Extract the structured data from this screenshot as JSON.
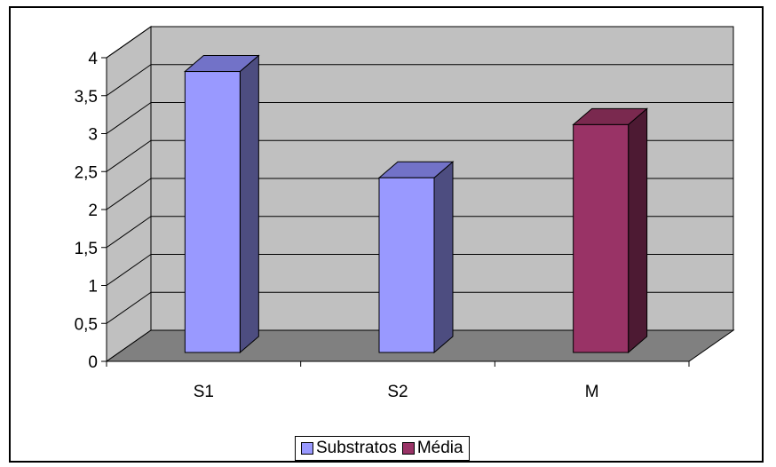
{
  "chart_data": {
    "type": "bar",
    "categories": [
      "S1",
      "S2",
      "M"
    ],
    "series": [
      {
        "name": "Substratos",
        "values": [
          3.9,
          2.5,
          null
        ],
        "color": "#9999ff",
        "side_color": "#4d4d80",
        "top_color": "#7272c8"
      },
      {
        "name": "Média",
        "values": [
          null,
          null,
          3.2
        ],
        "color": "#993366",
        "side_color": "#4d1a33",
        "top_color": "#7a294f"
      }
    ],
    "y_ticks": [
      "0",
      "0,5",
      "1",
      "1,5",
      "2",
      "2,5",
      "3",
      "3,5",
      "4"
    ],
    "ylim": [
      0,
      4
    ],
    "grid": true,
    "legend_position": "bottom",
    "title": "",
    "xlabel": "",
    "ylabel": "",
    "colors": {
      "wall": "#c0c0c0",
      "floor": "#808080",
      "gridline": "#000000"
    }
  }
}
